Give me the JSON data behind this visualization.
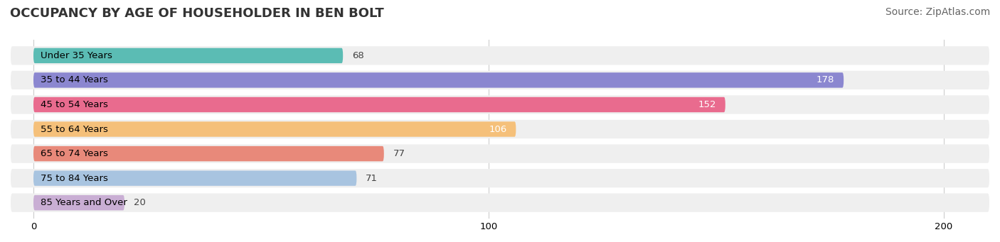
{
  "title": "OCCUPANCY BY AGE OF HOUSEHOLDER IN BEN BOLT",
  "source": "Source: ZipAtlas.com",
  "categories": [
    "Under 35 Years",
    "35 to 44 Years",
    "45 to 54 Years",
    "55 to 64 Years",
    "65 to 74 Years",
    "75 to 84 Years",
    "85 Years and Over"
  ],
  "values": [
    68,
    178,
    152,
    106,
    77,
    71,
    20
  ],
  "bar_colors": [
    "#5bbcb4",
    "#8b87d0",
    "#e96b8e",
    "#f5c07a",
    "#e8897a",
    "#a8c4e0",
    "#c9aed4"
  ],
  "bar_bg_color": "#efefef",
  "xlim": [
    -5,
    210
  ],
  "xticks": [
    0,
    100,
    200
  ],
  "title_fontsize": 13,
  "source_fontsize": 10,
  "label_fontsize": 9.5,
  "value_fontsize": 9.5,
  "bar_height": 0.62,
  "row_bg_colors": [
    "#f9f9f9",
    "#f9f9f9",
    "#f9f9f9",
    "#f9f9f9",
    "#f9f9f9",
    "#f9f9f9",
    "#f9f9f9"
  ],
  "value_label_inside_threshold": 100
}
